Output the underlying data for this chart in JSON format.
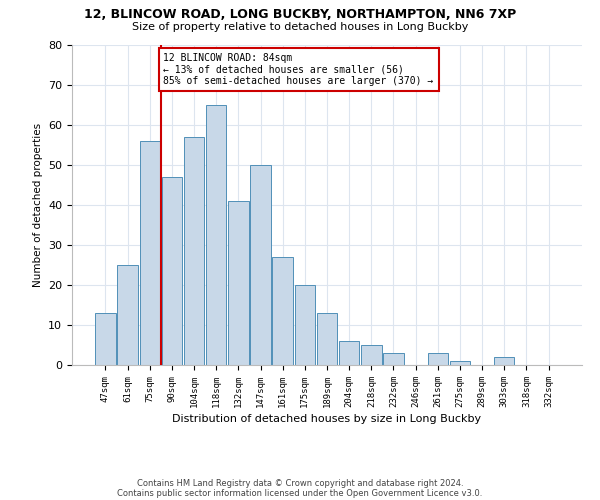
{
  "title1": "12, BLINCOW ROAD, LONG BUCKBY, NORTHAMPTON, NN6 7XP",
  "title2": "Size of property relative to detached houses in Long Buckby",
  "xlabel": "Distribution of detached houses by size in Long Buckby",
  "ylabel": "Number of detached properties",
  "bar_labels": [
    "47sqm",
    "61sqm",
    "75sqm",
    "90sqm",
    "104sqm",
    "118sqm",
    "132sqm",
    "147sqm",
    "161sqm",
    "175sqm",
    "189sqm",
    "204sqm",
    "218sqm",
    "232sqm",
    "246sqm",
    "261sqm",
    "275sqm",
    "289sqm",
    "303sqm",
    "318sqm",
    "332sqm"
  ],
  "bar_values": [
    13,
    25,
    56,
    47,
    57,
    65,
    41,
    50,
    27,
    20,
    13,
    6,
    5,
    3,
    0,
    3,
    1,
    0,
    2,
    0,
    0
  ],
  "bar_color": "#c8d8e8",
  "bar_edge_color": "#5090b8",
  "vline_color": "#cc0000",
  "annotation_line1": "12 BLINCOW ROAD: 84sqm",
  "annotation_line2": "← 13% of detached houses are smaller (56)",
  "annotation_line3": "85% of semi-detached houses are larger (370) →",
  "annotation_box_color": "#ffffff",
  "annotation_box_edge_color": "#cc0000",
  "ylim": [
    0,
    80
  ],
  "yticks": [
    0,
    10,
    20,
    30,
    40,
    50,
    60,
    70,
    80
  ],
  "footnote1": "Contains HM Land Registry data © Crown copyright and database right 2024.",
  "footnote2": "Contains public sector information licensed under the Open Government Licence v3.0.",
  "bg_color": "#ffffff",
  "grid_color": "#dde5ef"
}
